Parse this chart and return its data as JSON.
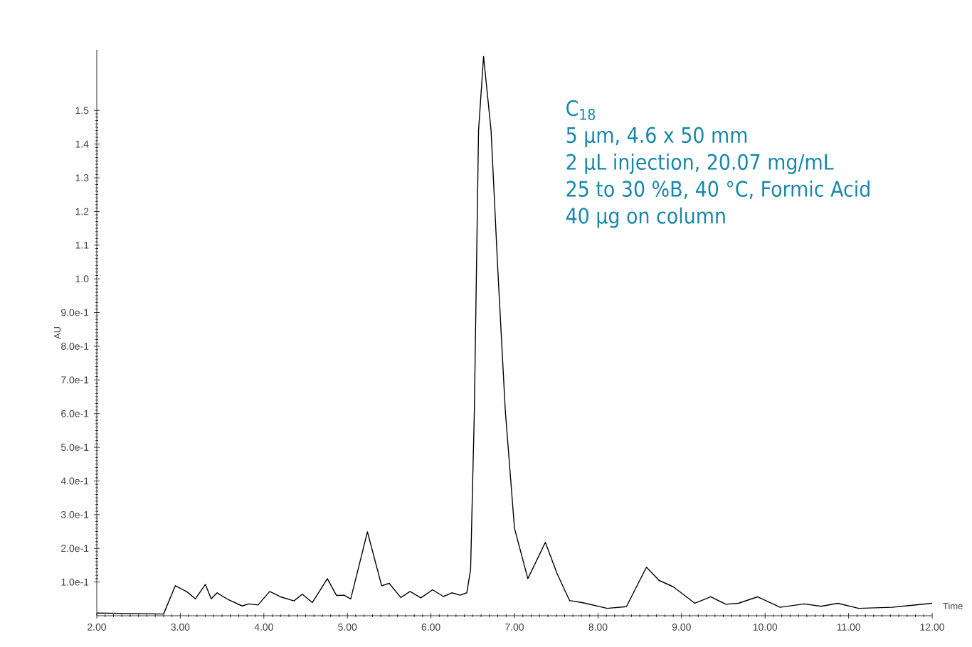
{
  "chart_data": {
    "type": "line",
    "xlabel": "Time",
    "ylabel": "AU",
    "annotations": [
      "C$_{18}$",
      "5 µm, 4.6 x 50 mm",
      "2 µL injection, 20.07 mg/mL",
      "25 to 30 %B, 40 °C, Formic Acid",
      "40 µg on column"
    ],
    "x": [
      2.0,
      2.8,
      2.94,
      3.08,
      3.18,
      3.3,
      3.37,
      3.44,
      3.58,
      3.74,
      3.82,
      3.93,
      4.07,
      4.2,
      4.36,
      4.46,
      4.58,
      4.76,
      4.87,
      4.96,
      5.04,
      5.24,
      5.41,
      5.5,
      5.64,
      5.75,
      5.88,
      6.02,
      6.15,
      6.25,
      6.35,
      6.43,
      6.475,
      6.52,
      6.57,
      6.63,
      6.72,
      6.8,
      6.89,
      7.0,
      7.16,
      7.37,
      7.51,
      7.66,
      7.83,
      8.11,
      8.34,
      8.58,
      8.73,
      8.9,
      9.16,
      9.35,
      9.53,
      9.68,
      9.91,
      10.18,
      10.47,
      10.67,
      10.87,
      11.12,
      11.52,
      12.0
    ],
    "series": [
      {
        "color": "#000000",
        "values": [
          0.008,
          0.005,
          0.089,
          0.071,
          0.05,
          0.093,
          0.05,
          0.068,
          0.047,
          0.029,
          0.035,
          0.032,
          0.072,
          0.056,
          0.044,
          0.064,
          0.039,
          0.11,
          0.06,
          0.061,
          0.05,
          0.249,
          0.089,
          0.096,
          0.054,
          0.072,
          0.053,
          0.077,
          0.057,
          0.068,
          0.061,
          0.068,
          0.138,
          0.61,
          1.44,
          1.66,
          1.44,
          1.03,
          0.61,
          0.26,
          0.11,
          0.218,
          0.125,
          0.045,
          0.038,
          0.022,
          0.027,
          0.144,
          0.105,
          0.086,
          0.037,
          0.056,
          0.034,
          0.037,
          0.056,
          0.025,
          0.035,
          0.028,
          0.037,
          0.022,
          0.025,
          0.037
        ]
      }
    ],
    "xlim": [
      2,
      12
    ],
    "ylim": [
      0,
      1.68
    ],
    "xticks": [
      {
        "value": 2,
        "label": "2.00"
      },
      {
        "value": 3,
        "label": "3.00"
      },
      {
        "value": 4,
        "label": "4.00"
      },
      {
        "value": 5,
        "label": "5.00"
      },
      {
        "value": 6,
        "label": "6.00"
      },
      {
        "value": 7,
        "label": "7.00"
      },
      {
        "value": 8,
        "label": "8.00"
      },
      {
        "value": 9,
        "label": "9.00"
      },
      {
        "value": 10,
        "label": "10.00"
      },
      {
        "value": 11,
        "label": "11.00"
      },
      {
        "value": 12,
        "label": "12.00"
      }
    ],
    "yticks": [
      {
        "value": 0.1,
        "label": "1.0e-1"
      },
      {
        "value": 0.2,
        "label": "2.0e-1"
      },
      {
        "value": 0.3,
        "label": "3.0e-1"
      },
      {
        "value": 0.4,
        "label": "4.0e-1"
      },
      {
        "value": 0.5,
        "label": "5.0e-1"
      },
      {
        "value": 0.6,
        "label": "6.0e-1"
      },
      {
        "value": 0.7,
        "label": "7.0e-1"
      },
      {
        "value": 0.8,
        "label": "8.0e-1"
      },
      {
        "value": 0.9,
        "label": "9.0e-1"
      },
      {
        "value": 1.0,
        "label": "1.0"
      },
      {
        "value": 1.1,
        "label": "1.1"
      },
      {
        "value": 1.2,
        "label": "1.2"
      },
      {
        "value": 1.3,
        "label": "1.3"
      },
      {
        "value": 1.4,
        "label": "1.4"
      },
      {
        "value": 1.5,
        "label": "1.5"
      }
    ]
  }
}
